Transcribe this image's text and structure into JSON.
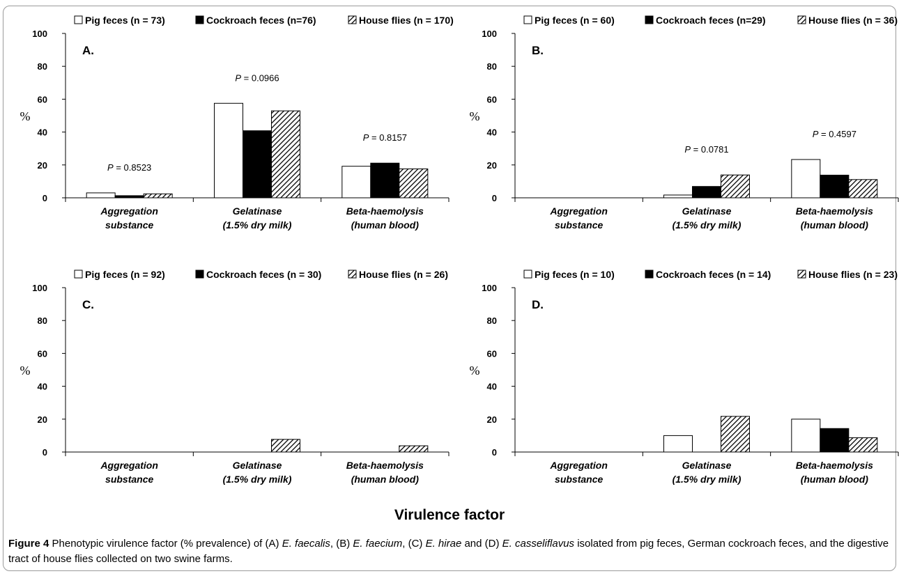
{
  "series_style": {
    "Pig feces": {
      "fill": "#ffffff",
      "pattern": "none"
    },
    "Cockroach feces": {
      "fill": "#000000",
      "pattern": "none"
    },
    "House flies": {
      "fill": "#ffffff",
      "pattern": "diagonal-hatch"
    }
  },
  "xlabel": "Virulence factor",
  "caption": {
    "label": "Figure 4",
    "t1": " Phenotypic virulence factor (% prevalence) of (A) ",
    "sp1": "E. faecalis",
    "t2": ", (B) ",
    "sp2": "E. faecium",
    "t3": ", (C) ",
    "sp3": "E. hirae",
    "t4": " and (D) ",
    "sp4": "E. casseliflavus",
    "t5": " isolated from pig feces, German cockroach feces, and the digestive tract of house flies collected on two swine farms."
  },
  "chart_data": [
    {
      "type": "bar",
      "panel": "A.",
      "ylabel": "%",
      "ylim": [
        0,
        100
      ],
      "yticks": [
        0,
        20,
        40,
        60,
        80,
        100
      ],
      "categories": [
        [
          "Aggregation",
          "substance"
        ],
        [
          "Gelatinase",
          "(1.5% dry milk)"
        ],
        [
          "Beta-haemolysis",
          "(human blood)"
        ]
      ],
      "series": [
        {
          "name": "Pig feces (n = 73)",
          "key": "Pig feces",
          "values": [
            3,
            57.5,
            19.2
          ]
        },
        {
          "name": "Cockroach feces (n=76)",
          "key": "Cockroach feces",
          "values": [
            1.3,
            40.8,
            21.1
          ]
        },
        {
          "name": "House flies (n = 170)",
          "key": "House flies",
          "values": [
            2.4,
            52.9,
            17.6
          ]
        }
      ],
      "p_values": [
        {
          "prefix": "P",
          "text": " = 0.8523"
        },
        {
          "prefix": "P",
          "text": " = 0.0966"
        },
        {
          "prefix": "P",
          "text": " = 0.8157"
        }
      ],
      "legend": "top"
    },
    {
      "type": "bar",
      "panel": "B.",
      "ylabel": "%",
      "ylim": [
        0,
        100
      ],
      "yticks": [
        0,
        20,
        40,
        60,
        80,
        100
      ],
      "categories": [
        [
          "Aggregation",
          "substance"
        ],
        [
          "Gelatinase",
          "(1.5% dry milk)"
        ],
        [
          "Beta-haemolysis",
          "(human blood)"
        ]
      ],
      "series": [
        {
          "name": "Pig feces (n = 60)",
          "key": "Pig feces",
          "values": [
            0,
            1.7,
            23.3
          ]
        },
        {
          "name": "Cockroach feces (n=29)",
          "key": "Cockroach feces",
          "values": [
            0,
            6.9,
            13.8
          ]
        },
        {
          "name": "House flies (n = 36)",
          "key": "House flies",
          "values": [
            0,
            13.9,
            11.1
          ]
        }
      ],
      "p_values": [
        null,
        {
          "prefix": "P",
          "text": " = 0.0781"
        },
        {
          "prefix": "P",
          "text": " = 0.4597"
        }
      ],
      "legend": "top"
    },
    {
      "type": "bar",
      "panel": "C.",
      "ylabel": "%",
      "ylim": [
        0,
        100
      ],
      "yticks": [
        0,
        20,
        40,
        60,
        80,
        100
      ],
      "categories": [
        [
          "Aggregation",
          "substance"
        ],
        [
          "Gelatinase",
          "(1.5% dry milk)"
        ],
        [
          "Beta-haemolysis",
          "(human blood)"
        ]
      ],
      "series": [
        {
          "name": "Pig feces (n = 92)",
          "key": "Pig feces",
          "values": [
            0,
            0,
            0
          ]
        },
        {
          "name": "Cockroach feces (n = 30)",
          "key": "Cockroach feces",
          "values": [
            0,
            0,
            0
          ]
        },
        {
          "name": "House flies (n = 26)",
          "key": "House flies",
          "values": [
            0,
            7.7,
            3.8
          ]
        }
      ],
      "p_values": [
        null,
        null,
        null
      ],
      "legend": "top"
    },
    {
      "type": "bar",
      "panel": "D.",
      "ylabel": "%",
      "ylim": [
        0,
        100
      ],
      "yticks": [
        0,
        20,
        40,
        60,
        80,
        100
      ],
      "categories": [
        [
          "Aggregation",
          "substance"
        ],
        [
          "Gelatinase",
          "(1.5% dry milk)"
        ],
        [
          "Beta-haemolysis",
          "(human blood)"
        ]
      ],
      "series": [
        {
          "name": "Pig feces (n = 10)",
          "key": "Pig feces",
          "values": [
            0,
            10,
            20
          ]
        },
        {
          "name": "Cockroach feces (n = 14)",
          "key": "Cockroach feces",
          "values": [
            0,
            0,
            14.3
          ]
        },
        {
          "name": "House flies (n = 23)",
          "key": "House flies",
          "values": [
            0,
            21.7,
            8.7
          ]
        }
      ],
      "p_values": [
        null,
        null,
        null
      ],
      "legend": "top"
    }
  ]
}
